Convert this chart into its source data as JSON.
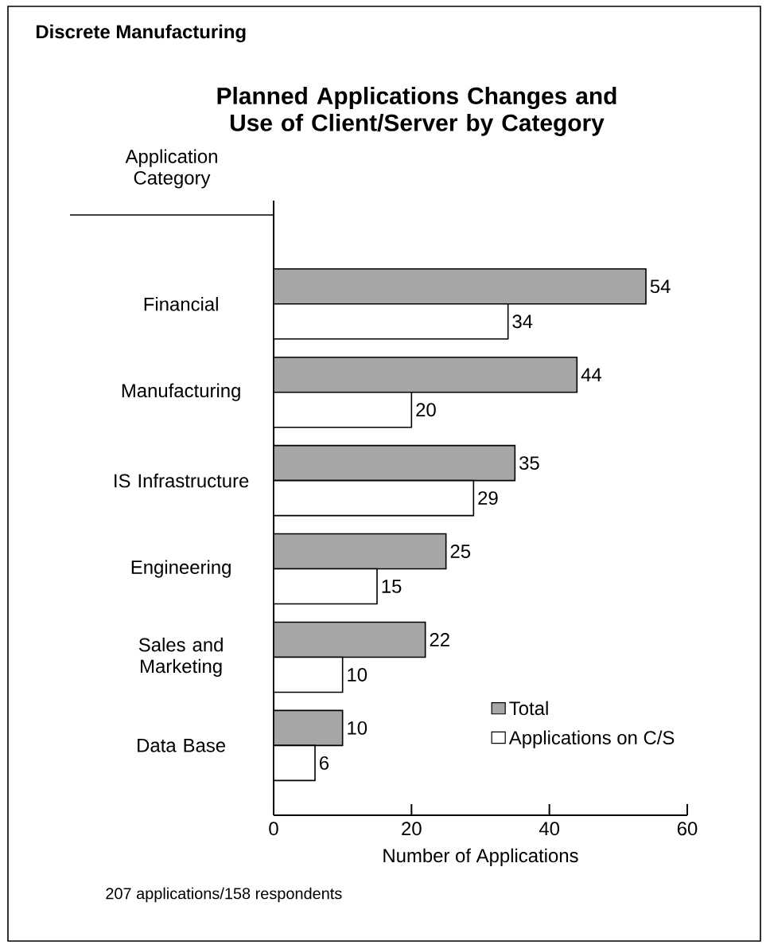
{
  "chart_data": {
    "type": "bar",
    "orientation": "horizontal",
    "subtitle": "Discrete Manufacturing",
    "title": "Planned Applications Changes and Use of Client/Server by Category",
    "ylabel": "Application Category",
    "xlabel": "Number of Applications",
    "categories": [
      "Financial",
      "Manufacturing",
      "IS Infrastructure",
      "Engineering",
      "Sales and Marketing",
      "Data Base"
    ],
    "series": [
      {
        "name": "Total",
        "color": "#a6a6a6",
        "values": [
          54,
          44,
          35,
          25,
          22,
          10
        ]
      },
      {
        "name": "Applications on C/S",
        "color": "#ffffff",
        "values": [
          34,
          20,
          29,
          15,
          10,
          6
        ]
      }
    ],
    "xlim": [
      0,
      60
    ],
    "xticks": [
      0,
      20,
      40,
      60
    ],
    "data_labels": true,
    "legend": "bottom right",
    "grid": false,
    "annotations": [
      "207 applications/158 respondents"
    ]
  }
}
